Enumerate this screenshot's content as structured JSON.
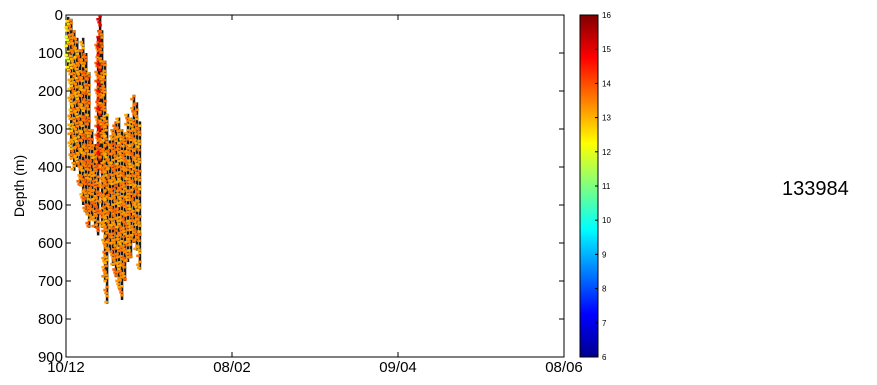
{
  "chart_data": {
    "type": "heatmap",
    "ylabel": "Depth (m)",
    "ylim": [
      900,
      0
    ],
    "y_ticks": [
      "0",
      "100",
      "200",
      "300",
      "400",
      "500",
      "600",
      "700",
      "800",
      "900"
    ],
    "x_ticks": [
      "10/12",
      "08/02",
      "09/04",
      "08/06"
    ],
    "colorbar": {
      "range": [
        6,
        16
      ],
      "ticks": [
        "6",
        "7",
        "8",
        "9",
        "10",
        "11",
        "12",
        "13",
        "14",
        "15",
        "16"
      ],
      "colormap": "jet"
    },
    "profiles_x_range": [
      0.0,
      0.157
    ],
    "profiles": [
      {
        "x": 0.004,
        "top": 5,
        "bottom": 150,
        "value": 12.2
      },
      {
        "x": 0.01,
        "top": 10,
        "bottom": 380,
        "value": 13.1
      },
      {
        "x": 0.016,
        "top": 40,
        "bottom": 410,
        "value": 13.4
      },
      {
        "x": 0.022,
        "top": 60,
        "bottom": 400,
        "value": 13.2
      },
      {
        "x": 0.028,
        "top": 90,
        "bottom": 450,
        "value": 13.5
      },
      {
        "x": 0.034,
        "top": 60,
        "bottom": 500,
        "value": 13.3
      },
      {
        "x": 0.04,
        "top": 100,
        "bottom": 520,
        "value": 13.6
      },
      {
        "x": 0.046,
        "top": 150,
        "bottom": 560,
        "value": 13.5
      },
      {
        "x": 0.052,
        "top": 300,
        "bottom": 540,
        "value": 13.5
      },
      {
        "x": 0.058,
        "top": 340,
        "bottom": 560,
        "value": 13.4
      },
      {
        "x": 0.064,
        "top": 60,
        "bottom": 580,
        "value": 13.6
      },
      {
        "x": 0.068,
        "top": 0,
        "bottom": 400,
        "value": 14.6
      },
      {
        "x": 0.072,
        "top": 40,
        "bottom": 560,
        "value": 13.5
      },
      {
        "x": 0.078,
        "top": 120,
        "bottom": 700,
        "value": 13.4
      },
      {
        "x": 0.082,
        "top": 260,
        "bottom": 760,
        "value": 13.3
      },
      {
        "x": 0.088,
        "top": 330,
        "bottom": 620,
        "value": 13.5
      },
      {
        "x": 0.094,
        "top": 300,
        "bottom": 660,
        "value": 13.4
      },
      {
        "x": 0.1,
        "top": 280,
        "bottom": 690,
        "value": 13.6
      },
      {
        "x": 0.106,
        "top": 270,
        "bottom": 720,
        "value": 13.3
      },
      {
        "x": 0.112,
        "top": 300,
        "bottom": 750,
        "value": 13.4
      },
      {
        "x": 0.118,
        "top": 310,
        "bottom": 700,
        "value": 13.5
      },
      {
        "x": 0.124,
        "top": 260,
        "bottom": 650,
        "value": 13.4
      },
      {
        "x": 0.13,
        "top": 270,
        "bottom": 640,
        "value": 13.3
      },
      {
        "x": 0.136,
        "top": 210,
        "bottom": 600,
        "value": 13.5
      },
      {
        "x": 0.142,
        "top": 230,
        "bottom": 620,
        "value": 13.4
      },
      {
        "x": 0.148,
        "top": 280,
        "bottom": 670,
        "value": 13.3
      }
    ]
  },
  "side_text": "133984"
}
